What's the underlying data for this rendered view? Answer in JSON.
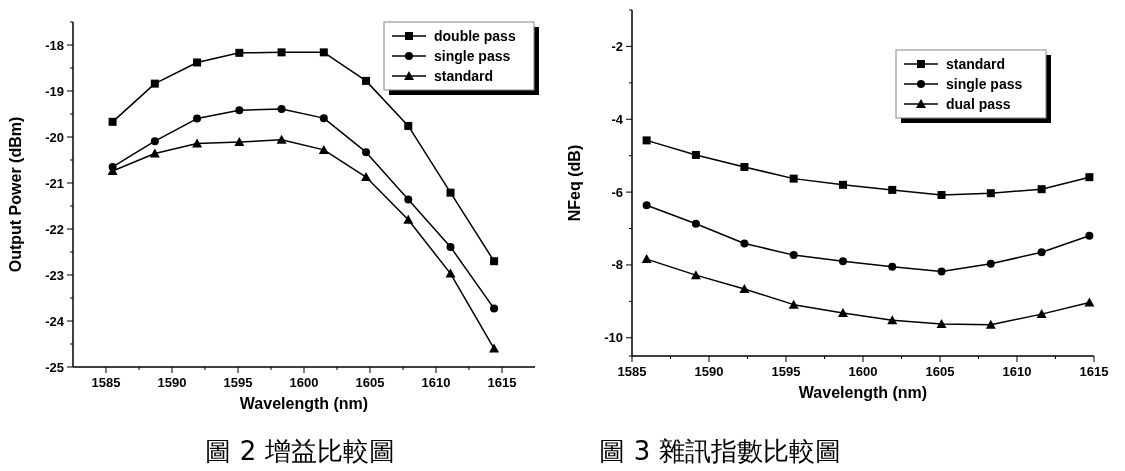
{
  "chart_data": [
    {
      "type": "line",
      "xlabel": "Wavelength (nm)",
      "ylabel": "Output Power (dBm)",
      "annotations": [
        "圖 2 增益比較圖"
      ],
      "legend": "top right",
      "line_style": "solid",
      "x": [
        1585.5,
        1588.7,
        1591.9,
        1595.1,
        1598.3,
        1601.5,
        1604.7,
        1607.9,
        1611.1,
        1614.4
      ],
      "xlim": [
        1582.5,
        1617.5
      ],
      "xticks": [
        1585,
        {
          "value": 1587.5,
          "label": null
        },
        1590,
        {
          "value": 1592.5,
          "label": null
        },
        1595,
        {
          "value": 1597.5,
          "label": null
        },
        1600,
        {
          "value": 1602.5,
          "label": null
        },
        1605,
        {
          "value": 1607.5,
          "label": null
        },
        1610,
        {
          "value": 1612.5,
          "label": null
        },
        1615
      ],
      "ylim": [
        -25,
        -17.5
      ],
      "yticks": [
        -25,
        {
          "value": -24.5,
          "label": null
        },
        -24,
        {
          "value": -23.5,
          "label": null
        },
        -23,
        {
          "value": -22.5,
          "label": null
        },
        -22,
        {
          "value": -21.5,
          "label": null
        },
        -21,
        {
          "value": -20.5,
          "label": null
        },
        -20,
        {
          "value": -19.5,
          "label": null
        },
        -19,
        {
          "value": -18.5,
          "label": null
        },
        -18,
        {
          "value": -17.5,
          "label": null
        }
      ],
      "series": [
        {
          "name": "double pass",
          "color": "#000000",
          "marker": "square",
          "values": [
            -19.67,
            -18.84,
            -18.38,
            -18.17,
            -18.16,
            -18.16,
            -18.78,
            -19.76,
            -21.21,
            -22.7
          ]
        },
        {
          "name": "single pass",
          "color": "#000000",
          "marker": "circle",
          "values": [
            -20.65,
            -20.09,
            -19.6,
            -19.42,
            -19.39,
            -19.59,
            -20.33,
            -21.36,
            -22.39,
            -23.73
          ]
        },
        {
          "name": "standard",
          "color": "#000000",
          "marker": "triangle",
          "values": [
            -20.74,
            -20.36,
            -20.14,
            -20.11,
            -20.06,
            -20.28,
            -20.87,
            -21.8,
            -22.97,
            -24.6
          ]
        }
      ]
    },
    {
      "type": "line",
      "xlabel": "Wavelength (nm)",
      "ylabel": "NFeq (dB)",
      "annotations": [
        "圖 3 雜訊指數比較圖"
      ],
      "legend": "top right",
      "line_style": "solid",
      "x": [
        1585.95,
        1589.15,
        1592.3,
        1595.5,
        1598.7,
        1601.9,
        1605.1,
        1608.3,
        1611.6,
        1614.7
      ],
      "xlim": [
        1585,
        1615
      ],
      "xticks": [
        1585,
        {
          "value": 1587.5,
          "label": null
        },
        1590,
        {
          "value": 1592.5,
          "label": null
        },
        1595,
        {
          "value": 1597.5,
          "label": null
        },
        1600,
        {
          "value": 1602.5,
          "label": null
        },
        1605,
        {
          "value": 1607.5,
          "label": null
        },
        1610,
        {
          "value": 1612.5,
          "label": null
        },
        1615
      ],
      "ylim": [
        -10.5,
        -1
      ],
      "yticks": [
        {
          "value": -10.5,
          "label": null
        },
        -10,
        {
          "value": -9,
          "label": null
        },
        -8,
        {
          "value": -7,
          "label": null
        },
        -6,
        {
          "value": -5,
          "label": null
        },
        -4,
        {
          "value": -3,
          "label": null
        },
        -2,
        {
          "value": -1,
          "label": null
        }
      ],
      "series": [
        {
          "name": "standard",
          "color": "#000000",
          "marker": "square",
          "values": [
            -4.58,
            -4.98,
            -5.31,
            -5.63,
            -5.8,
            -5.94,
            -6.08,
            -6.03,
            -5.92,
            -5.59
          ]
        },
        {
          "name": "single pass",
          "color": "#000000",
          "marker": "circle",
          "values": [
            -6.36,
            -6.87,
            -7.41,
            -7.73,
            -7.9,
            -8.05,
            -8.18,
            -7.97,
            -7.65,
            -7.2
          ]
        },
        {
          "name": "dual pass",
          "color": "#000000",
          "marker": "triangle",
          "values": [
            -7.84,
            -8.28,
            -8.66,
            -9.09,
            -9.32,
            -9.52,
            -9.62,
            -9.64,
            -9.35,
            -9.03
          ]
        }
      ]
    }
  ]
}
